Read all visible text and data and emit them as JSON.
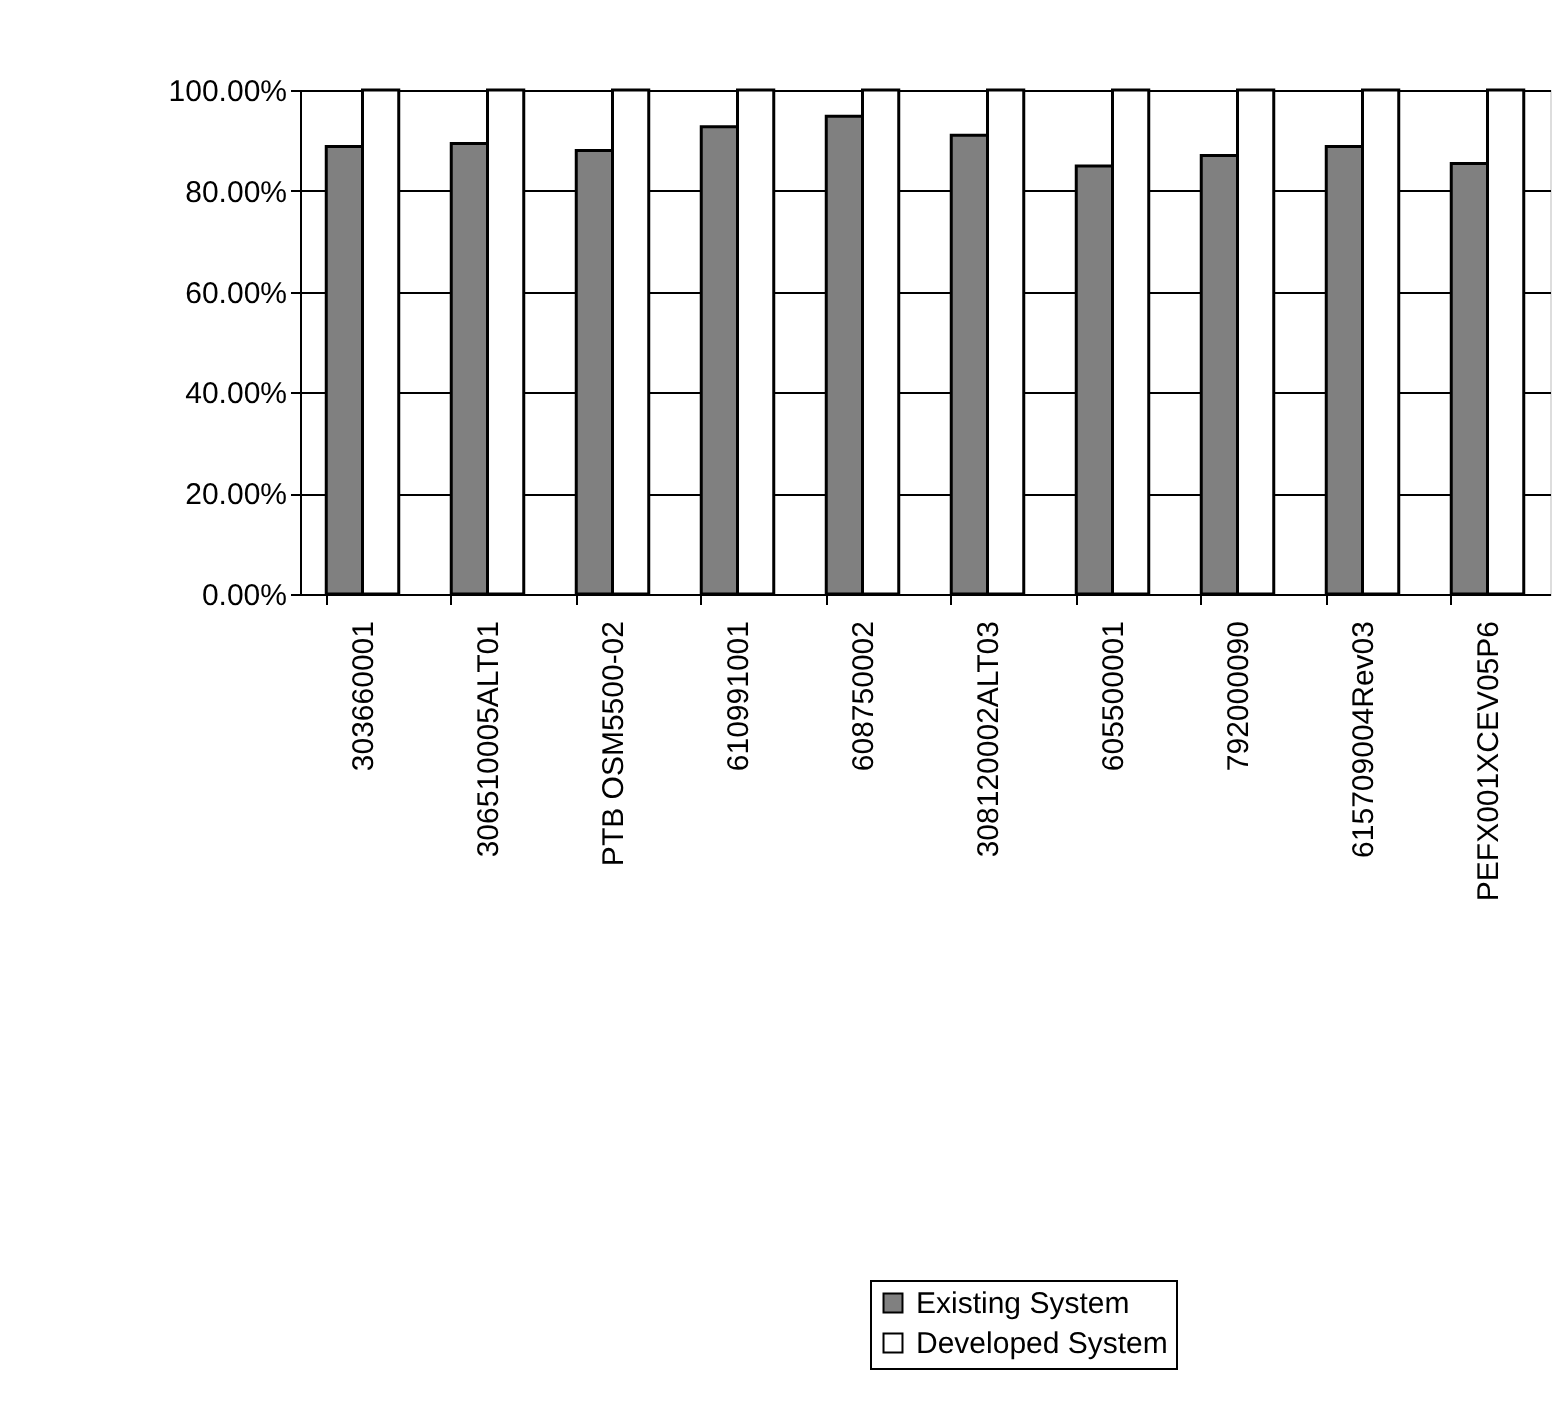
{
  "chart_data": {
    "type": "bar",
    "categories": [
      "303660001",
      "306510005ALT01",
      "PTB OSM5500-02",
      "610991001",
      "608750002",
      "308120002ALT03",
      "605500001",
      "792000090",
      "615709004Rev03",
      "PEFX001XCEV05P6"
    ],
    "series": [
      {
        "name": "Existing System",
        "color": "#808080",
        "values": [
          88.8,
          89.4,
          88.0,
          92.7,
          94.8,
          91.0,
          84.9,
          87.0,
          88.8,
          85.4
        ]
      },
      {
        "name": "Developed System",
        "color": "#ffffff",
        "values": [
          100,
          100,
          100,
          100,
          100,
          100,
          100,
          100,
          100,
          100
        ]
      }
    ],
    "ylim": [
      0,
      100
    ],
    "yticks": [
      {
        "value": 0,
        "label": "0.00%"
      },
      {
        "value": 20,
        "label": "20.00%"
      },
      {
        "value": 40,
        "label": "40.00%"
      },
      {
        "value": 60,
        "label": "60.00%"
      },
      {
        "value": 80,
        "label": "80.00%"
      },
      {
        "value": 100,
        "label": "100.00%"
      }
    ],
    "grid": "y",
    "legend": "bottom"
  }
}
